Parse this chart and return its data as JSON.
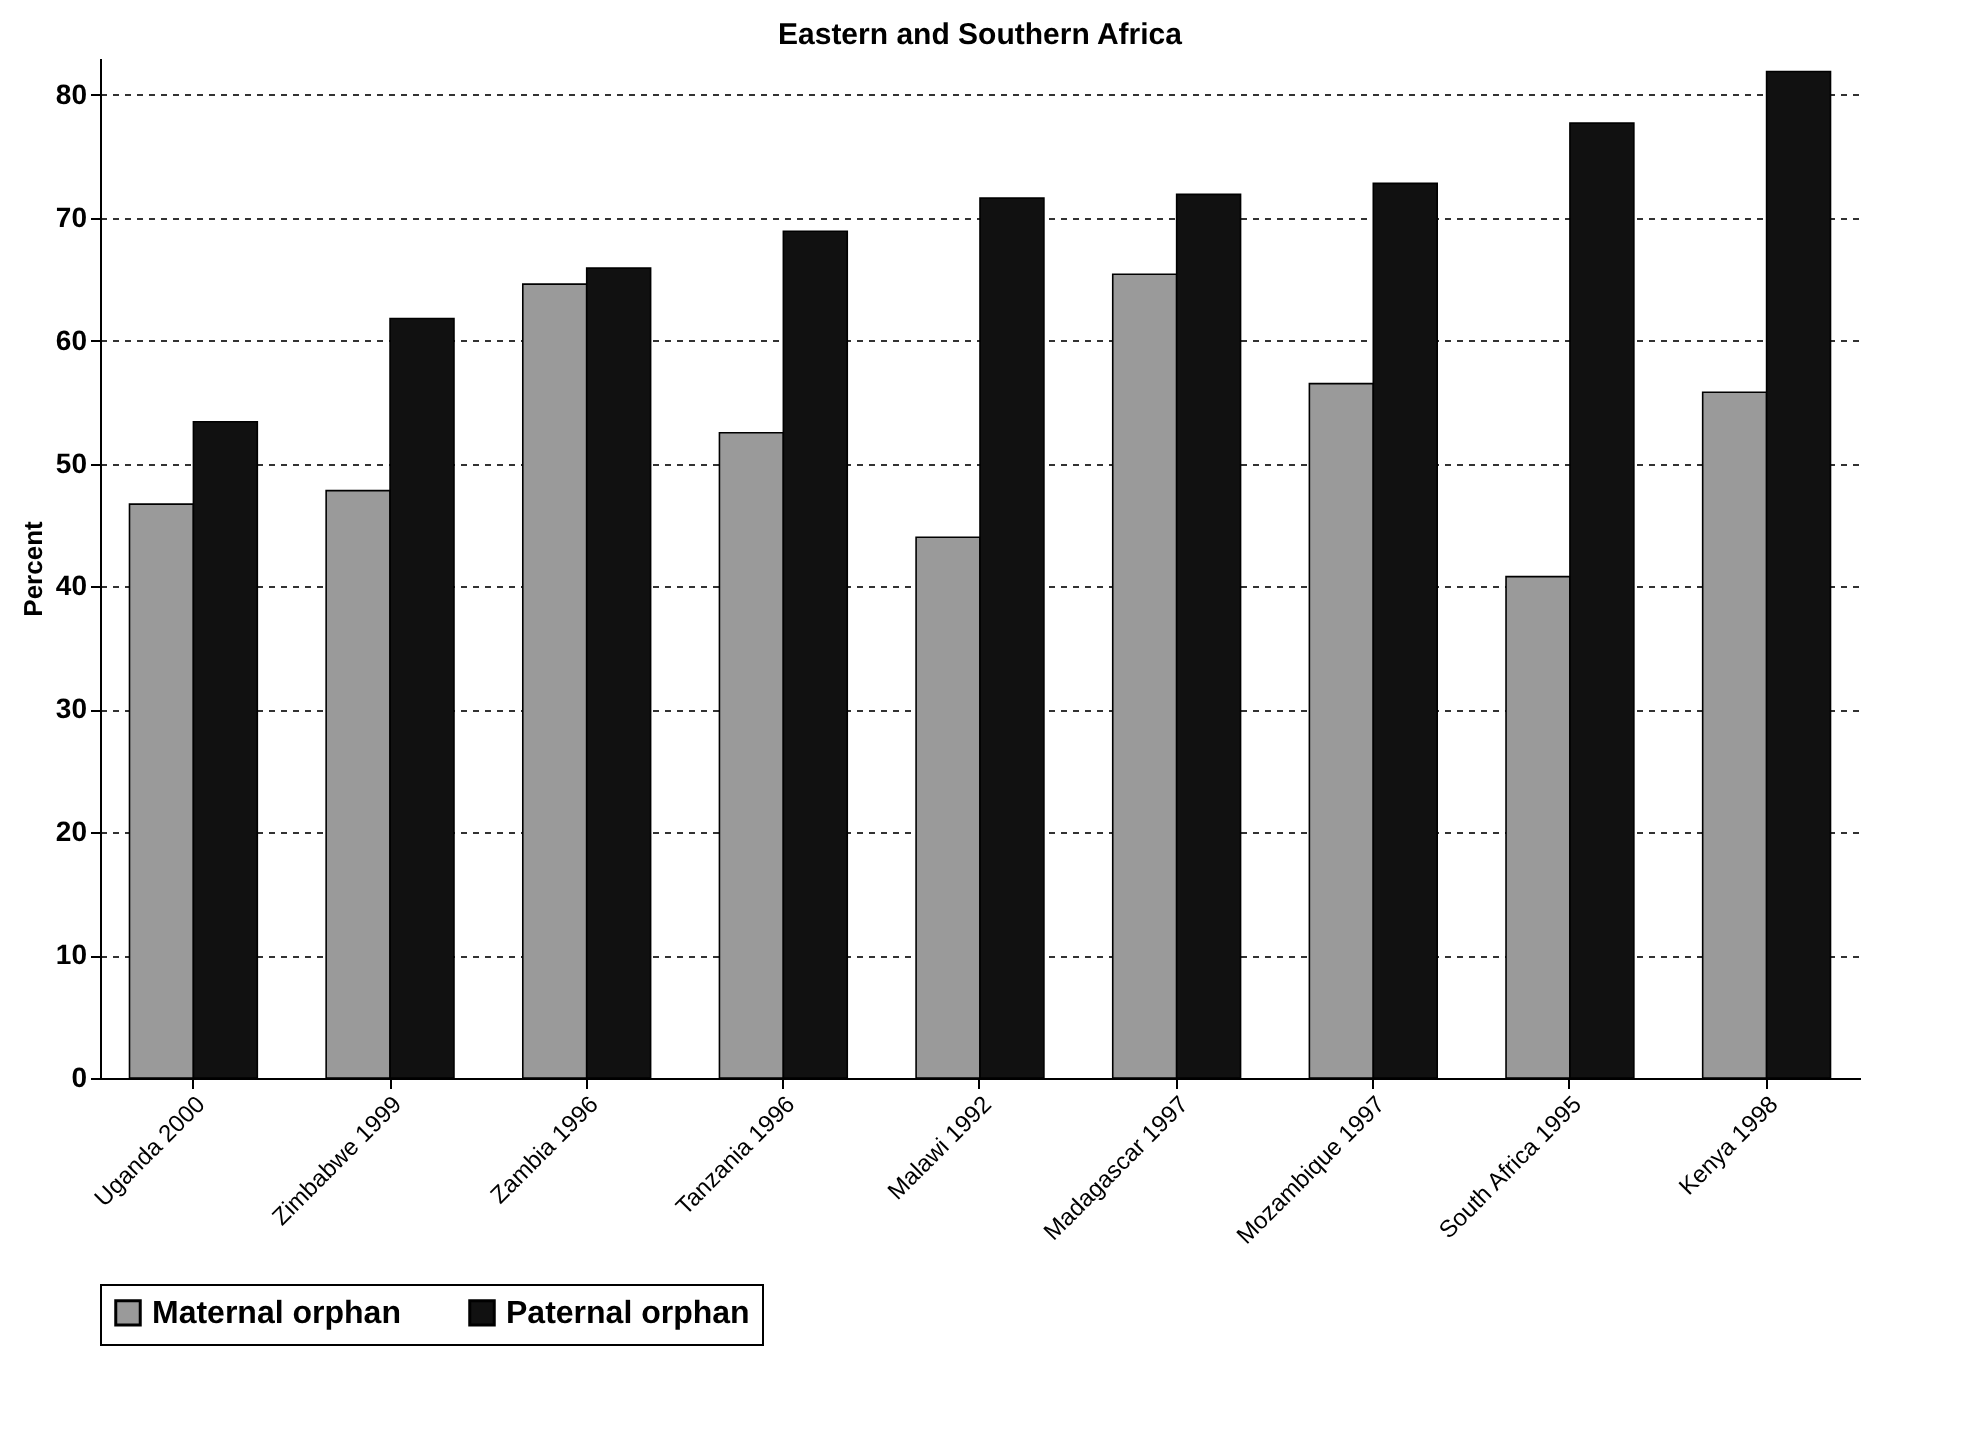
{
  "chart_data": {
    "type": "bar",
    "title": "Eastern and Southern Africa",
    "ylabel": "Percent",
    "categories": [
      "Uganda 2000",
      "Zimbabwe 1999",
      "Zambia 1996",
      "Tanzania 1996",
      "Malawi 1992",
      "Madagascar 1997",
      "Mozambique 1997",
      "South Africa 1995",
      "Kenya 1998"
    ],
    "series": [
      {
        "name": "Maternal orphan",
        "color": "#9a9a9a",
        "values": [
          46.7,
          47.8,
          64.6,
          52.5,
          44.0,
          65.4,
          56.5,
          40.8,
          55.8
        ]
      },
      {
        "name": "Paternal orphan",
        "color": "#111111",
        "values": [
          53.4,
          61.8,
          65.9,
          68.9,
          71.6,
          71.9,
          72.8,
          77.7,
          81.9
        ]
      }
    ],
    "ylim": [
      0,
      83
    ],
    "yticks": [
      0,
      10,
      20,
      30,
      40,
      50,
      60,
      70,
      80
    ],
    "grid": "y",
    "legend": "bottom"
  }
}
